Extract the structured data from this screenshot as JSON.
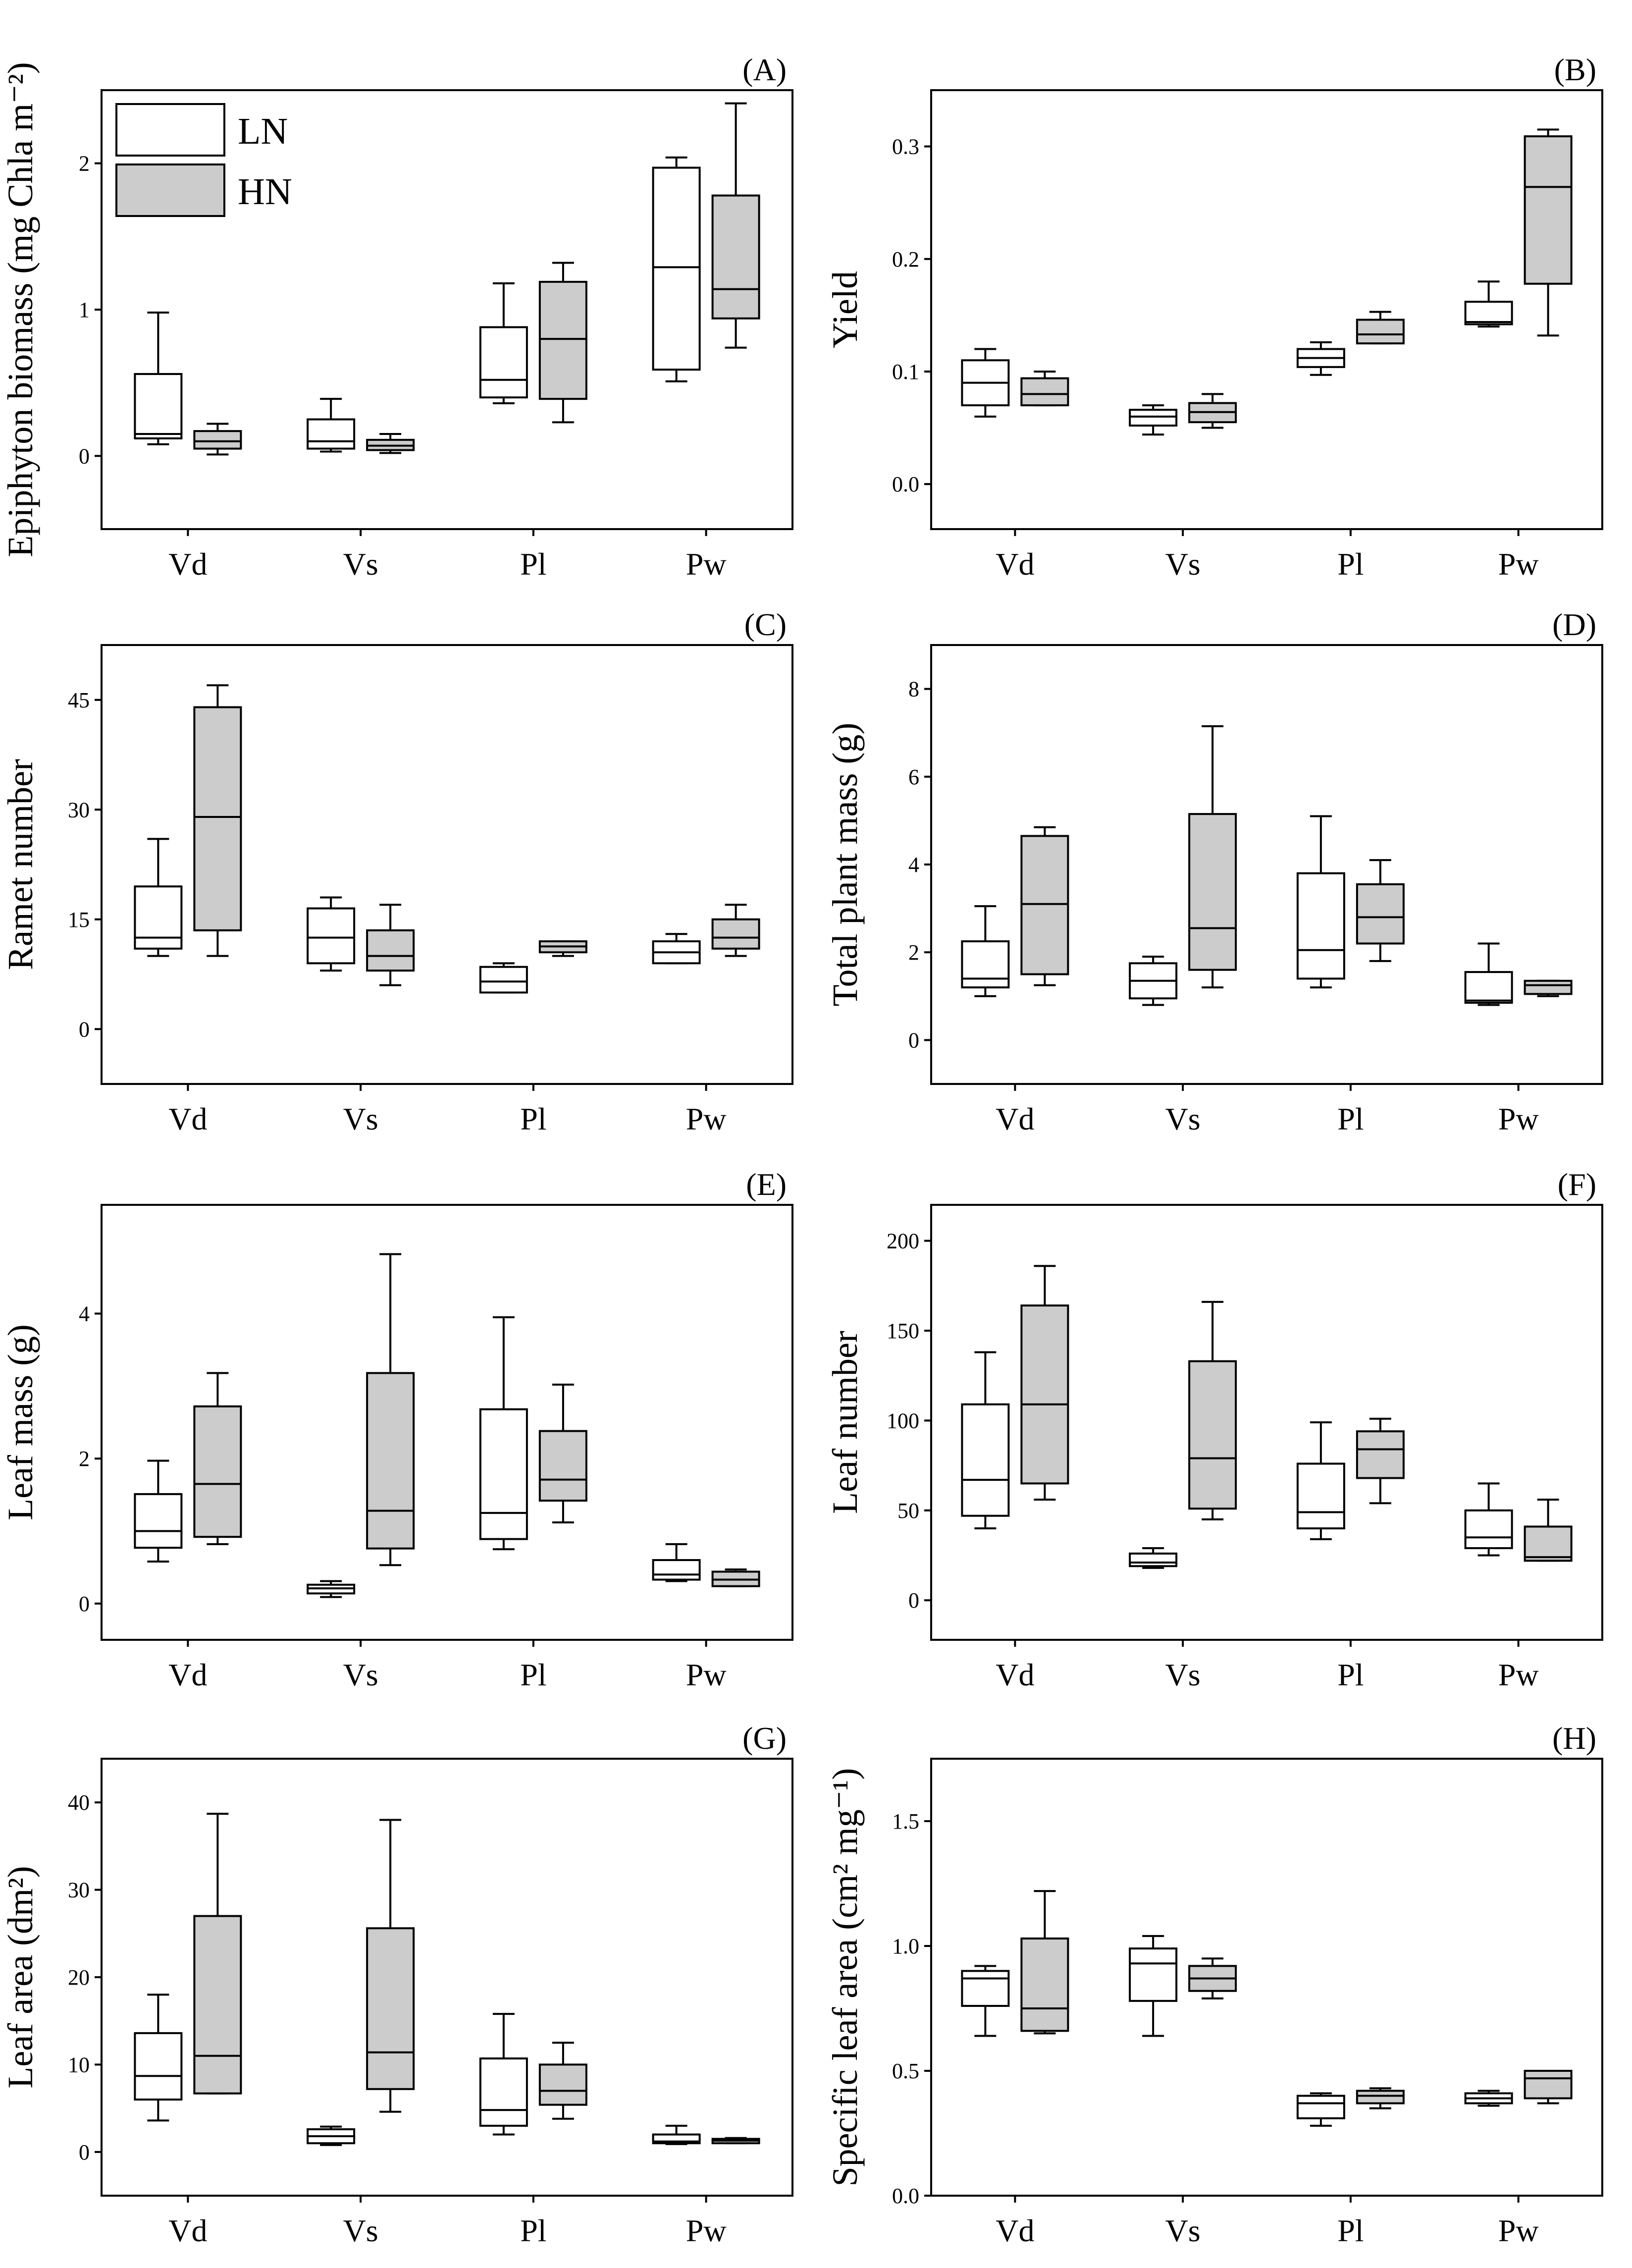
{
  "figure": {
    "legend": [
      {
        "name": "LN",
        "color": "#ffffff"
      },
      {
        "name": "HN",
        "color": "#cccccc"
      }
    ]
  },
  "chart_data": [
    {
      "type": "box",
      "panel_label": "(A)",
      "ylabel": "Epiphyton biomass (mg Chla m⁻²)",
      "categories": [
        "Vd",
        "Vs",
        "Pl",
        "Pw"
      ],
      "ylim": [
        -0.5,
        2.5
      ],
      "yticks": [
        0,
        1,
        2
      ],
      "ytick_labels": [
        "0",
        "1",
        "2"
      ],
      "legend_placement": "top-left",
      "series": [
        {
          "name": "LN",
          "boxes": [
            {
              "min": 0.08,
              "q1": 0.12,
              "median": 0.15,
              "q3": 0.56,
              "max": 0.98
            },
            {
              "min": 0.03,
              "q1": 0.05,
              "median": 0.1,
              "q3": 0.25,
              "max": 0.39
            },
            {
              "min": 0.36,
              "q1": 0.4,
              "median": 0.52,
              "q3": 0.88,
              "max": 1.18
            },
            {
              "min": 0.51,
              "q1": 0.59,
              "median": 1.29,
              "q3": 1.97,
              "max": 2.04
            }
          ]
        },
        {
          "name": "HN",
          "boxes": [
            {
              "min": 0.01,
              "q1": 0.05,
              "median": 0.1,
              "q3": 0.17,
              "max": 0.22
            },
            {
              "min": 0.02,
              "q1": 0.04,
              "median": 0.07,
              "q3": 0.11,
              "max": 0.15
            },
            {
              "min": 0.23,
              "q1": 0.39,
              "median": 0.8,
              "q3": 1.19,
              "max": 1.32
            },
            {
              "min": 0.74,
              "q1": 0.94,
              "median": 1.14,
              "q3": 1.78,
              "max": 2.41
            }
          ]
        }
      ]
    },
    {
      "type": "box",
      "panel_label": "(B)",
      "ylabel": "Yield",
      "categories": [
        "Vd",
        "Vs",
        "Pl",
        "Pw"
      ],
      "ylim": [
        -0.04,
        0.35
      ],
      "yticks": [
        0,
        0.1,
        0.2,
        0.3
      ],
      "ytick_labels": [
        "0.0",
        "0.1",
        "0.2",
        "0.3"
      ],
      "series": [
        {
          "name": "LN",
          "boxes": [
            {
              "min": 0.06,
              "q1": 0.07,
              "median": 0.09,
              "q3": 0.11,
              "max": 0.12
            },
            {
              "min": 0.044,
              "q1": 0.052,
              "median": 0.06,
              "q3": 0.066,
              "max": 0.07
            },
            {
              "min": 0.097,
              "q1": 0.104,
              "median": 0.112,
              "q3": 0.12,
              "max": 0.126
            },
            {
              "min": 0.14,
              "q1": 0.142,
              "median": 0.144,
              "q3": 0.162,
              "max": 0.18
            }
          ]
        },
        {
          "name": "HN",
          "boxes": [
            {
              "min": 0.07,
              "q1": 0.07,
              "median": 0.08,
              "q3": 0.094,
              "max": 0.1
            },
            {
              "min": 0.05,
              "q1": 0.055,
              "median": 0.064,
              "q3": 0.072,
              "max": 0.08
            },
            {
              "min": 0.125,
              "q1": 0.125,
              "median": 0.133,
              "q3": 0.146,
              "max": 0.153
            },
            {
              "min": 0.132,
              "q1": 0.178,
              "median": 0.264,
              "q3": 0.309,
              "max": 0.315
            }
          ]
        }
      ]
    },
    {
      "type": "box",
      "panel_label": "(C)",
      "ylabel": "Ramet number",
      "categories": [
        "Vd",
        "Vs",
        "Pl",
        "Pw"
      ],
      "ylim": [
        -7.5,
        52.5
      ],
      "yticks": [
        0,
        15,
        30,
        45
      ],
      "ytick_labels": [
        "0",
        "15",
        "30",
        "45"
      ],
      "series": [
        {
          "name": "LN",
          "boxes": [
            {
              "min": 10,
              "q1": 11,
              "median": 12.5,
              "q3": 19.5,
              "max": 26
            },
            {
              "min": 8,
              "q1": 9,
              "median": 12.5,
              "q3": 16.5,
              "max": 18
            },
            {
              "min": 5,
              "q1": 5,
              "median": 6.5,
              "q3": 8.5,
              "max": 9
            },
            {
              "min": 9,
              "q1": 9,
              "median": 10.5,
              "q3": 12,
              "max": 13
            }
          ]
        },
        {
          "name": "HN",
          "boxes": [
            {
              "min": 10,
              "q1": 13.5,
              "median": 29,
              "q3": 44,
              "max": 47
            },
            {
              "min": 6,
              "q1": 8,
              "median": 10,
              "q3": 13.5,
              "max": 17
            },
            {
              "min": 10,
              "q1": 10.5,
              "median": 11.3,
              "q3": 12,
              "max": 12
            },
            {
              "min": 10,
              "q1": 11,
              "median": 12.5,
              "q3": 15,
              "max": 17
            }
          ]
        }
      ]
    },
    {
      "type": "box",
      "panel_label": "(D)",
      "ylabel": "Total plant mass (g)",
      "categories": [
        "Vd",
        "Vs",
        "Pl",
        "Pw"
      ],
      "ylim": [
        -1,
        9
      ],
      "yticks": [
        0,
        2,
        4,
        6,
        8
      ],
      "ytick_labels": [
        "0",
        "2",
        "4",
        "6",
        "8"
      ],
      "series": [
        {
          "name": "LN",
          "boxes": [
            {
              "min": 1.0,
              "q1": 1.2,
              "median": 1.4,
              "q3": 2.25,
              "max": 3.05
            },
            {
              "min": 0.8,
              "q1": 0.95,
              "median": 1.35,
              "q3": 1.75,
              "max": 1.9
            },
            {
              "min": 1.2,
              "q1": 1.4,
              "median": 2.05,
              "q3": 3.8,
              "max": 5.1
            },
            {
              "min": 0.8,
              "q1": 0.85,
              "median": 0.9,
              "q3": 1.55,
              "max": 2.2
            }
          ]
        },
        {
          "name": "HN",
          "boxes": [
            {
              "min": 1.25,
              "q1": 1.5,
              "median": 3.1,
              "q3": 4.65,
              "max": 4.85
            },
            {
              "min": 1.2,
              "q1": 1.6,
              "median": 2.55,
              "q3": 5.15,
              "max": 7.15
            },
            {
              "min": 1.8,
              "q1": 2.2,
              "median": 2.8,
              "q3": 3.55,
              "max": 4.1
            },
            {
              "min": 1.0,
              "q1": 1.05,
              "median": 1.25,
              "q3": 1.35,
              "max": 1.35
            }
          ]
        }
      ]
    },
    {
      "type": "box",
      "panel_label": "(E)",
      "ylabel": "Leaf mass (g)",
      "categories": [
        "Vd",
        "Vs",
        "Pl",
        "Pw"
      ],
      "ylim": [
        -0.5,
        5.5
      ],
      "yticks": [
        0,
        2,
        4
      ],
      "ytick_labels": [
        "0",
        "2",
        "4"
      ],
      "series": [
        {
          "name": "LN",
          "boxes": [
            {
              "min": 0.58,
              "q1": 0.77,
              "median": 1.0,
              "q3": 1.51,
              "max": 1.97
            },
            {
              "min": 0.09,
              "q1": 0.14,
              "median": 0.21,
              "q3": 0.26,
              "max": 0.31
            },
            {
              "min": 0.75,
              "q1": 0.89,
              "median": 1.25,
              "q3": 2.68,
              "max": 3.95
            },
            {
              "min": 0.31,
              "q1": 0.33,
              "median": 0.4,
              "q3": 0.6,
              "max": 0.82
            }
          ]
        },
        {
          "name": "HN",
          "boxes": [
            {
              "min": 0.82,
              "q1": 0.92,
              "median": 1.65,
              "q3": 2.72,
              "max": 3.18
            },
            {
              "min": 0.53,
              "q1": 0.76,
              "median": 1.28,
              "q3": 3.18,
              "max": 4.82
            },
            {
              "min": 1.12,
              "q1": 1.42,
              "median": 1.71,
              "q3": 2.38,
              "max": 3.02
            },
            {
              "min": 0.24,
              "q1": 0.24,
              "median": 0.33,
              "q3": 0.44,
              "max": 0.47
            }
          ]
        }
      ]
    },
    {
      "type": "box",
      "panel_label": "(F)",
      "ylabel": "Leaf number",
      "categories": [
        "Vd",
        "Vs",
        "Pl",
        "Pw"
      ],
      "ylim": [
        -22,
        220
      ],
      "yticks": [
        0,
        50,
        100,
        150,
        200
      ],
      "ytick_labels": [
        "0",
        "50",
        "100",
        "150",
        "200"
      ],
      "series": [
        {
          "name": "LN",
          "boxes": [
            {
              "min": 40,
              "q1": 47,
              "median": 67,
              "q3": 109,
              "max": 138
            },
            {
              "min": 18,
              "q1": 19,
              "median": 21,
              "q3": 26,
              "max": 29
            },
            {
              "min": 34,
              "q1": 40,
              "median": 49,
              "q3": 76,
              "max": 99
            },
            {
              "min": 25,
              "q1": 29,
              "median": 35,
              "q3": 50,
              "max": 65
            }
          ]
        },
        {
          "name": "HN",
          "boxes": [
            {
              "min": 56,
              "q1": 65,
              "median": 109,
              "q3": 164,
              "max": 186
            },
            {
              "min": 45,
              "q1": 51,
              "median": 79,
              "q3": 133,
              "max": 166
            },
            {
              "min": 54,
              "q1": 68,
              "median": 84,
              "q3": 94,
              "max": 101
            },
            {
              "min": 22,
              "q1": 22,
              "median": 24,
              "q3": 41,
              "max": 56
            }
          ]
        }
      ]
    },
    {
      "type": "box",
      "panel_label": "(G)",
      "ylabel": "Leaf area (dm²)",
      "categories": [
        "Vd",
        "Vs",
        "Pl",
        "Pw"
      ],
      "ylim": [
        -5,
        45
      ],
      "yticks": [
        0,
        10,
        20,
        30,
        40
      ],
      "ytick_labels": [
        "0",
        "10",
        "20",
        "30",
        "40"
      ],
      "series": [
        {
          "name": "LN",
          "boxes": [
            {
              "min": 3.6,
              "q1": 6.0,
              "median": 8.7,
              "q3": 13.6,
              "max": 18.0
            },
            {
              "min": 0.8,
              "q1": 1.0,
              "median": 1.8,
              "q3": 2.6,
              "max": 2.9
            },
            {
              "min": 2.0,
              "q1": 3.0,
              "median": 4.8,
              "q3": 10.7,
              "max": 15.8
            },
            {
              "min": 0.9,
              "q1": 1.0,
              "median": 1.2,
              "q3": 2.0,
              "max": 3.0
            }
          ]
        },
        {
          "name": "HN",
          "boxes": [
            {
              "min": 6.7,
              "q1": 6.7,
              "median": 11.0,
              "q3": 27.0,
              "max": 38.7
            },
            {
              "min": 4.6,
              "q1": 7.2,
              "median": 11.4,
              "q3": 25.6,
              "max": 38.0
            },
            {
              "min": 3.8,
              "q1": 5.4,
              "median": 7.0,
              "q3": 10.0,
              "max": 12.5
            },
            {
              "min": 1.0,
              "q1": 1.0,
              "median": 1.3,
              "q3": 1.5,
              "max": 1.6
            }
          ]
        }
      ]
    },
    {
      "type": "box",
      "panel_label": "(H)",
      "ylabel": "Specific leaf area (cm² mg⁻¹)",
      "categories": [
        "Vd",
        "Vs",
        "Pl",
        "Pw"
      ],
      "ylim": [
        0,
        1.75
      ],
      "yticks": [
        0,
        0.5,
        1.0,
        1.5
      ],
      "ytick_labels": [
        "0.0",
        "0.5",
        "1.0",
        "1.5"
      ],
      "series": [
        {
          "name": "LN",
          "boxes": [
            {
              "min": 0.64,
              "q1": 0.76,
              "median": 0.87,
              "q3": 0.9,
              "max": 0.92
            },
            {
              "min": 0.64,
              "q1": 0.78,
              "median": 0.93,
              "q3": 0.99,
              "max": 1.04
            },
            {
              "min": 0.28,
              "q1": 0.31,
              "median": 0.37,
              "q3": 0.4,
              "max": 0.41
            },
            {
              "min": 0.36,
              "q1": 0.37,
              "median": 0.39,
              "q3": 0.41,
              "max": 0.42
            }
          ]
        },
        {
          "name": "HN",
          "boxes": [
            {
              "min": 0.65,
              "q1": 0.66,
              "median": 0.75,
              "q3": 1.03,
              "max": 1.22
            },
            {
              "min": 0.79,
              "q1": 0.82,
              "median": 0.87,
              "q3": 0.92,
              "max": 0.95
            },
            {
              "min": 0.35,
              "q1": 0.37,
              "median": 0.4,
              "q3": 0.42,
              "max": 0.43
            },
            {
              "min": 0.37,
              "q1": 0.39,
              "median": 0.47,
              "q3": 0.5,
              "max": 0.5
            }
          ]
        }
      ]
    }
  ]
}
